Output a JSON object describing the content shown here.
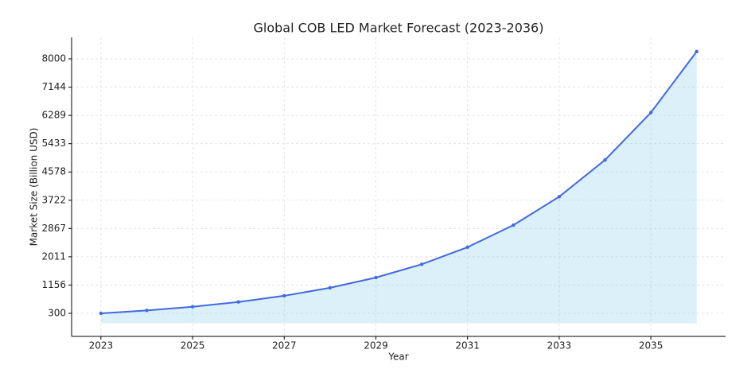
{
  "chart_data": {
    "type": "line",
    "title": "Global COB LED Market Forecast (2023-2036)",
    "x_label": "Year",
    "y_label": "Market Size (Billion USD)",
    "x": [
      2023,
      2024,
      2025,
      2026,
      2027,
      2028,
      2029,
      2030,
      2031,
      2032,
      2033,
      2034,
      2035,
      2036
    ],
    "series": [
      {
        "name": "Market Size",
        "color": "#4169e1",
        "fill": "#87ceeb",
        "values": [
          300,
          387,
          499,
          644,
          831,
          1072,
          1383,
          1784,
          2302,
          2969,
          3830,
          4941,
          6374,
          8222
        ]
      }
    ],
    "xlim": [
      2022.36,
      2036.63
    ],
    "xticks": [
      2023,
      2025,
      2027,
      2029,
      2031,
      2033,
      2035
    ],
    "ylim": [
      -398,
      8650
    ],
    "yticks": [
      300,
      {
        "value": 1155.6,
        "label": "1156"
      },
      {
        "value": 2011.1,
        "label": "2011"
      },
      {
        "value": 2866.7,
        "label": "2867"
      },
      {
        "value": 3722.2,
        "label": "3722"
      },
      {
        "value": 4577.8,
        "label": "4578"
      },
      {
        "value": 5433.3,
        "label": "5433"
      },
      {
        "value": 6288.9,
        "label": "6289"
      },
      {
        "value": 7144.4,
        "label": "7144"
      },
      8000
    ],
    "grid": true
  }
}
